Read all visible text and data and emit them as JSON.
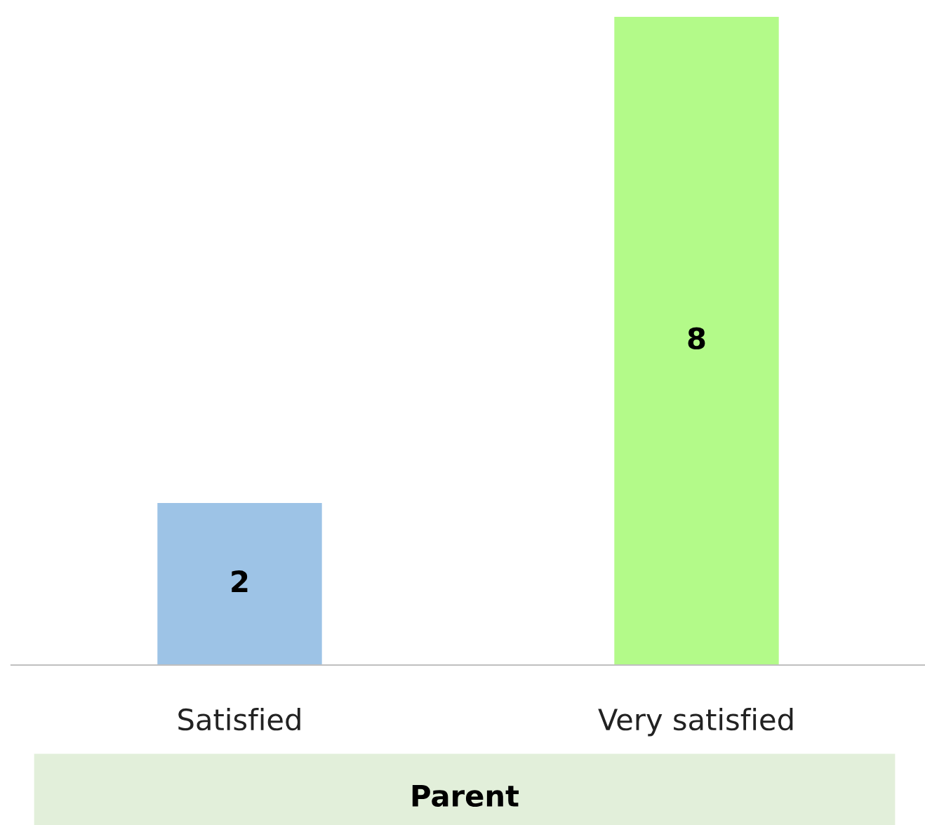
{
  "chart_data": {
    "type": "bar",
    "categories": [
      "Satisfied",
      "Very satisfied"
    ],
    "values": [
      2,
      8
    ],
    "colors": [
      "#9dc3e6",
      "#b3fa89"
    ],
    "data_labels": true,
    "ylim": [
      0,
      8
    ],
    "tick_labels": "x",
    "grid": false,
    "legend": false,
    "annotations": [
      "Parent"
    ]
  }
}
